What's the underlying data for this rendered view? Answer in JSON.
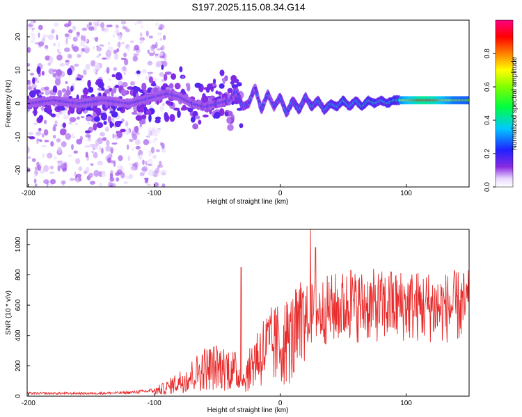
{
  "figure": {
    "title": "S197.2025.115.08.34.G14"
  },
  "chart_data": [
    {
      "type": "heatmap",
      "xlabel": "Height of straight line (km)",
      "ylabel": "Frequency (Hz)",
      "xlim": [
        -201,
        150
      ],
      "ylim": [
        -25,
        25
      ],
      "xticks": [
        -200,
        -100,
        0,
        100
      ],
      "yticks": [
        -20,
        -10,
        0,
        10,
        20
      ],
      "colorbar": {
        "label": "Normalized spectral amplitude",
        "range": [
          0,
          1
        ],
        "ticks": [
          0.0,
          0.2,
          0.4,
          0.6,
          0.8
        ],
        "tick_labels": [
          "0.0",
          "0.2",
          "0.4",
          "0.6",
          "0.8"
        ],
        "colormap": "rainbow (white-violet-blue-cyan-green-yellow-orange-red-magenta)"
      },
      "ridge": {
        "description": "dominant frequency track",
        "x": [
          -200,
          -180,
          -160,
          -140,
          -120,
          -100,
          -90,
          -80,
          -70,
          -60,
          -50,
          -40,
          -35,
          -30,
          -25,
          -20,
          -15,
          -10,
          -5,
          0,
          5,
          10,
          15,
          20,
          25,
          30,
          35,
          40,
          45,
          50,
          55,
          60,
          65,
          70,
          75,
          80,
          85,
          90,
          95,
          100,
          110,
          120,
          130,
          140,
          150
        ],
        "y": [
          0,
          1,
          0,
          1,
          0,
          2,
          3,
          2,
          0,
          -1,
          0,
          1,
          4,
          -1,
          0,
          5,
          -2,
          3,
          -1,
          2,
          -3,
          1,
          -2,
          2,
          -1,
          1,
          -2,
          0,
          -1,
          1,
          -1,
          1,
          -1,
          1,
          0,
          1,
          0,
          1,
          1,
          1,
          1,
          1,
          1,
          1,
          1
        ],
        "peak_amplitude_x": 115,
        "peak_amplitude": 0.95
      }
    },
    {
      "type": "line",
      "xlabel": "Height of straight line (km)",
      "ylabel": "SNR (10 * v/v)",
      "xlim": [
        -201,
        150
      ],
      "ylim": [
        0,
        1100
      ],
      "xticks": [
        -200,
        -100,
        0,
        100
      ],
      "yticks": [
        0,
        200,
        400,
        600,
        800,
        1000
      ],
      "line_color": "#e82a2a",
      "envelope_x": [
        -200,
        -150,
        -120,
        -100,
        -90,
        -80,
        -70,
        -60,
        -50,
        -40,
        -35,
        -30,
        -25,
        -20,
        -10,
        0,
        10,
        20,
        30,
        40,
        50,
        60,
        70,
        80,
        90,
        100,
        110,
        120,
        130,
        140,
        150
      ],
      "envelope_y": [
        20,
        20,
        25,
        40,
        70,
        120,
        170,
        230,
        240,
        230,
        200,
        120,
        200,
        320,
        400,
        430,
        480,
        560,
        600,
        620,
        640,
        640,
        650,
        640,
        640,
        650,
        640,
        640,
        630,
        640,
        640
      ],
      "spikes": [
        {
          "x": -31,
          "y": 850
        },
        {
          "x": 24,
          "y": 1100
        },
        {
          "x": 28,
          "y": 980
        },
        {
          "x": 56,
          "y": 830
        },
        {
          "x": 88,
          "y": 820
        }
      ]
    }
  ]
}
